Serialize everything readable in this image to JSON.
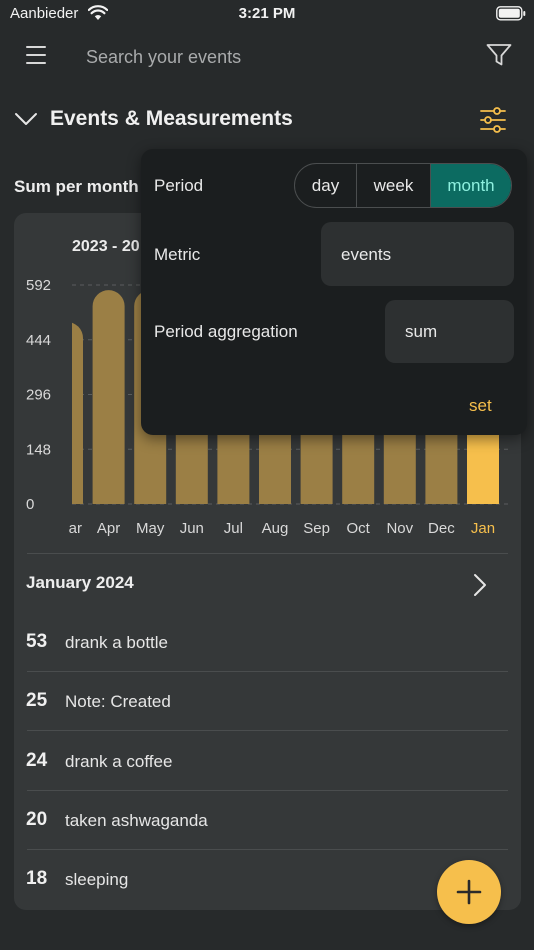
{
  "status_bar": {
    "carrier": "Aanbieder",
    "time": "3:21 PM"
  },
  "search": {
    "placeholder": "Search your events"
  },
  "section": {
    "title": "Events & Measurements"
  },
  "subtitle": "Sum per month",
  "chart_data": {
    "type": "bar",
    "title": "2023 - 20",
    "categories": [
      "ar",
      "Apr",
      "May",
      "Jun",
      "Jul",
      "Aug",
      "Sep",
      "Oct",
      "Nov",
      "Dec",
      "Jan"
    ],
    "values": [
      492,
      578,
      578,
      500,
      500,
      500,
      500,
      500,
      500,
      500,
      335
    ],
    "highlight_category": "Jan",
    "yticks": [
      "592",
      "444",
      "296",
      "148",
      "0"
    ],
    "ylim": [
      0,
      592
    ],
    "grid": true
  },
  "month_header": "January 2024",
  "events": [
    {
      "count": "53",
      "name": "drank a bottle"
    },
    {
      "count": "25",
      "name": "Note: Created"
    },
    {
      "count": "24",
      "name": "drank a coffee"
    },
    {
      "count": "20",
      "name": "taken ashwaganda"
    },
    {
      "count": "18",
      "name": "sleeping"
    }
  ],
  "popover": {
    "period_label": "Period",
    "period_options": [
      "day",
      "week",
      "month"
    ],
    "period_selected": "month",
    "metric_label": "Metric",
    "metric_value": "events",
    "aggregation_label": "Period aggregation",
    "aggregation_value": "sum",
    "set_label": "set"
  },
  "colors": {
    "accent": "#f6bf4c",
    "bar": "#9b7f45",
    "bar_highlight": "#f6bf4c",
    "selected_segment": "#0c6b61"
  },
  "icons": [
    "wifi-icon",
    "battery-icon",
    "menu-icon",
    "filter-icon",
    "chevron-down-icon",
    "sliders-icon",
    "chevron-right-icon",
    "plus-icon"
  ]
}
